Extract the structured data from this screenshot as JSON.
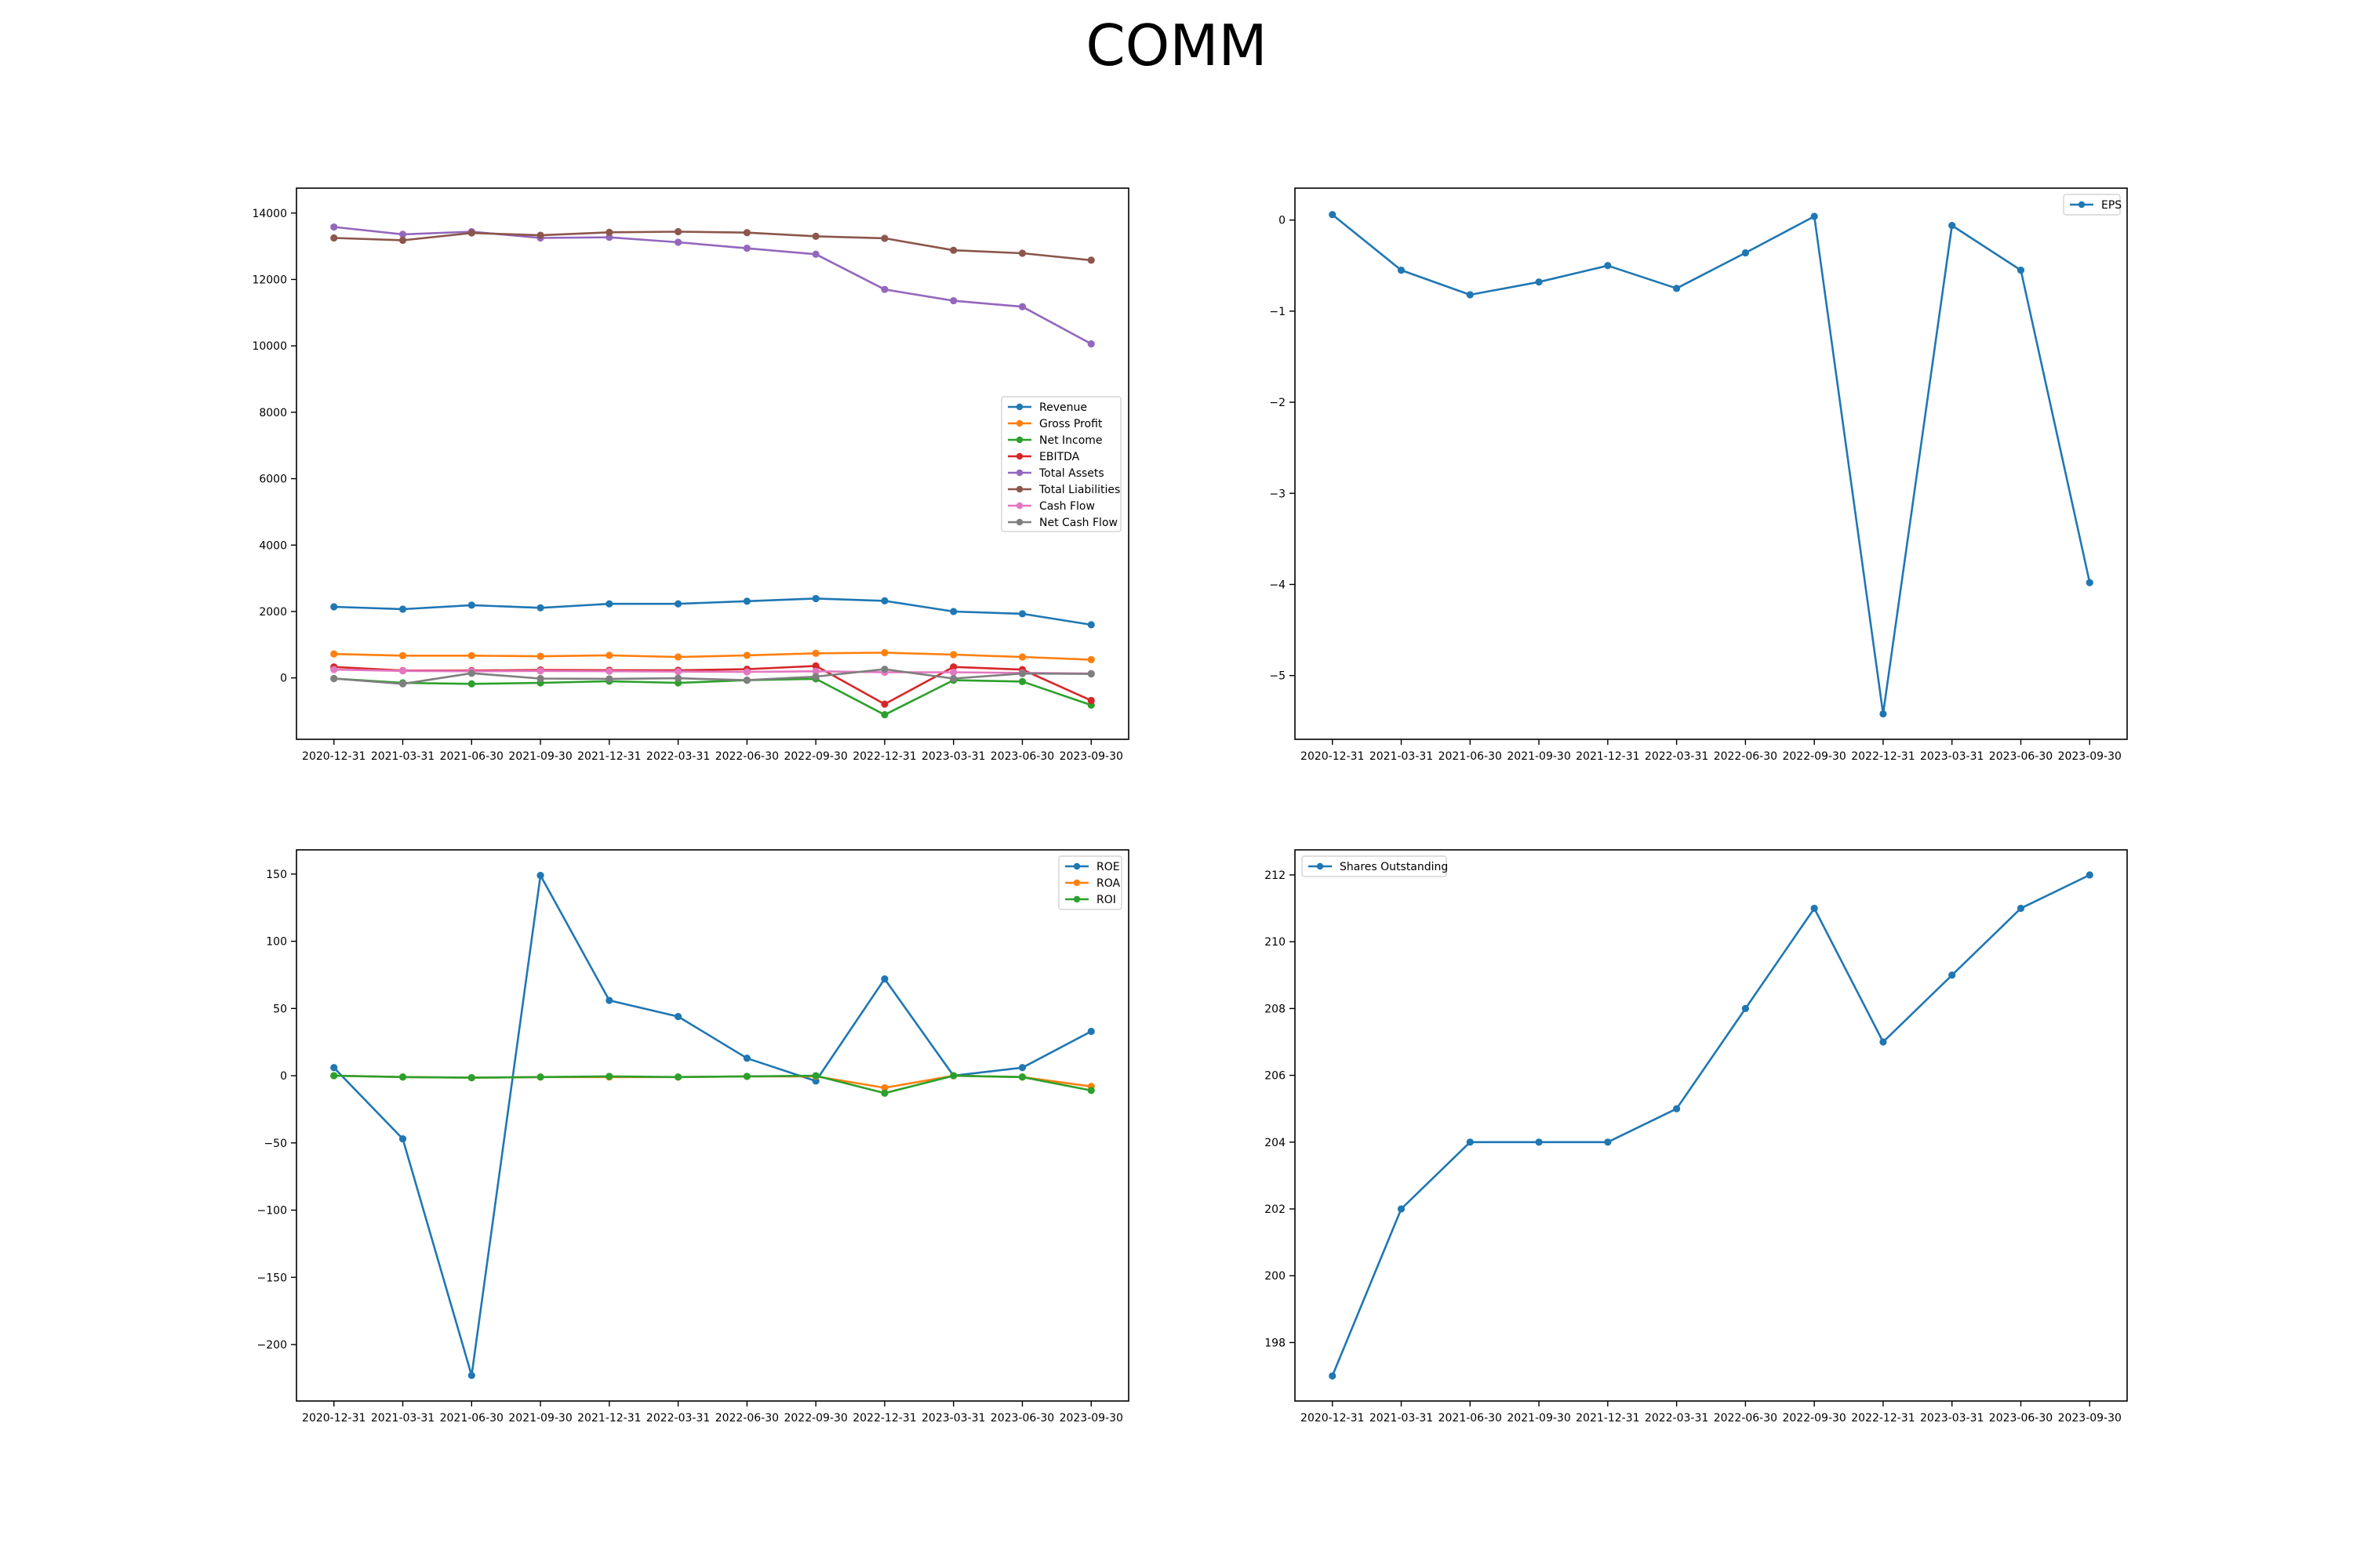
{
  "figure": {
    "title": "COMM"
  },
  "chart_data": [
    {
      "type": "line",
      "categories": [
        "2020-12-31",
        "2021-03-31",
        "2021-06-30",
        "2021-09-30",
        "2021-12-31",
        "2022-03-31",
        "2022-06-30",
        "2022-09-30",
        "2022-12-31",
        "2023-03-31",
        "2023-06-30",
        "2023-09-30"
      ],
      "ylim": [
        -1850,
        14750
      ],
      "yticks": [
        0,
        2000,
        4000,
        6000,
        8000,
        10000,
        12000,
        14000
      ],
      "legend_position": "center-right",
      "grid": false,
      "series": [
        {
          "name": "Revenue",
          "color": "#1f77b4",
          "values": [
            2140,
            2070,
            2190,
            2110,
            2230,
            2230,
            2310,
            2390,
            2320,
            2000,
            1930,
            1600
          ]
        },
        {
          "name": "Gross Profit",
          "color": "#ff7f0e",
          "values": [
            720,
            670,
            670,
            650,
            680,
            630,
            680,
            740,
            760,
            700,
            630,
            550
          ]
        },
        {
          "name": "Net Income",
          "color": "#2ca02c",
          "values": [
            -20,
            -150,
            -180,
            -150,
            -100,
            -150,
            -70,
            -30,
            -1110,
            -70,
            -110,
            -820
          ]
        },
        {
          "name": "EBITDA",
          "color": "#d62728",
          "values": [
            330,
            220,
            220,
            240,
            230,
            230,
            260,
            360,
            -790,
            330,
            250,
            -680
          ]
        },
        {
          "name": "Total Assets",
          "color": "#9467bd",
          "values": [
            13580,
            13360,
            13440,
            13250,
            13270,
            13120,
            12940,
            12760,
            11700,
            11360,
            11180,
            10060
          ]
        },
        {
          "name": "Total Liabilities",
          "color": "#8c564b",
          "values": [
            13250,
            13180,
            13400,
            13330,
            13420,
            13440,
            13410,
            13300,
            13240,
            12880,
            12790,
            12580
          ]
        },
        {
          "name": "Cash Flow",
          "color": "#e377c2",
          "values": [
            250,
            210,
            200,
            210,
            200,
            190,
            180,
            200,
            170,
            170,
            150,
            130
          ]
        },
        {
          "name": "Net Cash Flow",
          "color": "#7f7f7f",
          "values": [
            -20,
            -180,
            140,
            -20,
            -30,
            -10,
            -70,
            40,
            260,
            -20,
            130,
            120
          ]
        }
      ]
    },
    {
      "type": "line",
      "categories": [
        "2020-12-31",
        "2021-03-31",
        "2021-06-30",
        "2021-09-30",
        "2021-12-31",
        "2022-03-31",
        "2022-06-30",
        "2022-09-30",
        "2022-12-31",
        "2023-03-31",
        "2023-06-30",
        "2023-09-30"
      ],
      "ylim": [
        -5.7,
        0.35
      ],
      "yticks": [
        0,
        -1,
        -2,
        -3,
        -4,
        -5
      ],
      "legend_position": "top-right",
      "grid": false,
      "series": [
        {
          "name": "EPS",
          "color": "#1f77b4",
          "values": [
            0.06,
            -0.55,
            -0.82,
            -0.68,
            -0.5,
            -0.75,
            -0.36,
            0.04,
            -5.42,
            -0.06,
            -0.55,
            -3.98
          ]
        }
      ]
    },
    {
      "type": "line",
      "categories": [
        "2020-12-31",
        "2021-03-31",
        "2021-06-30",
        "2021-09-30",
        "2021-12-31",
        "2022-03-31",
        "2022-06-30",
        "2022-09-30",
        "2022-12-31",
        "2023-03-31",
        "2023-06-30",
        "2023-09-30"
      ],
      "ylim": [
        -242,
        168
      ],
      "yticks": [
        150,
        100,
        50,
        0,
        -50,
        -100,
        -150,
        -200
      ],
      "legend_position": "top-right",
      "grid": false,
      "series": [
        {
          "name": "ROE",
          "color": "#1f77b4",
          "values": [
            6,
            -47,
            -223,
            149,
            56,
            44,
            13,
            -4,
            72,
            0,
            6,
            33
          ]
        },
        {
          "name": "ROA",
          "color": "#ff7f0e",
          "values": [
            0,
            -1,
            -1.5,
            -1,
            -1,
            -1,
            -0.5,
            -0.5,
            -9,
            0,
            -1,
            -8
          ]
        },
        {
          "name": "ROI",
          "color": "#2ca02c",
          "values": [
            0,
            -1,
            -1.5,
            -1,
            -0.5,
            -1,
            -0.5,
            0,
            -13,
            0,
            -1,
            -11
          ]
        }
      ]
    },
    {
      "type": "line",
      "categories": [
        "2020-12-31",
        "2021-03-31",
        "2021-06-30",
        "2021-09-30",
        "2021-12-31",
        "2022-03-31",
        "2022-06-30",
        "2022-09-30",
        "2022-12-31",
        "2023-03-31",
        "2023-06-30",
        "2023-09-30"
      ],
      "ylim": [
        196.25,
        212.75
      ],
      "yticks": [
        198,
        200,
        202,
        204,
        206,
        208,
        210,
        212
      ],
      "legend_position": "top-left",
      "grid": false,
      "series": [
        {
          "name": "Shares Outstanding",
          "color": "#1f77b4",
          "values": [
            197,
            202,
            204,
            204,
            204,
            205,
            208,
            211,
            207,
            209,
            211,
            212
          ]
        }
      ]
    }
  ]
}
